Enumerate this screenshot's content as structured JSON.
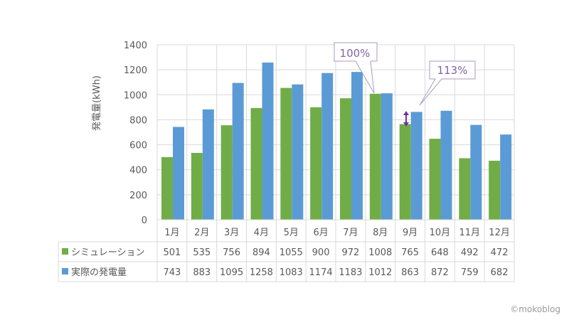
{
  "chart_data": {
    "type": "bar",
    "title": "",
    "ylabel": "発電量(kWh)",
    "xlabel": "",
    "ylim": [
      0,
      1400
    ],
    "yticks": [
      0,
      200,
      400,
      600,
      800,
      1000,
      1200,
      1400
    ],
    "grid": true,
    "categories": [
      "1月",
      "2月",
      "3月",
      "4月",
      "5月",
      "6月",
      "7月",
      "8月",
      "9月",
      "10月",
      "11月",
      "12月"
    ],
    "series": [
      {
        "name": "シミュレーション",
        "color": "#70ad47",
        "values": [
          501,
          535,
          756,
          894,
          1055,
          900,
          972,
          1008,
          765,
          648,
          492,
          472
        ]
      },
      {
        "name": "実際の発電量",
        "color": "#5b9bd5",
        "values": [
          743,
          883,
          1095,
          1258,
          1083,
          1174,
          1183,
          1012,
          863,
          872,
          759,
          682
        ]
      }
    ],
    "annotations": [
      {
        "text": "100%",
        "month": "8月",
        "color": "#8064a2"
      },
      {
        "text": "113%",
        "month": "9月",
        "color": "#8064a2"
      }
    ],
    "legend": "data-table"
  },
  "watermark": "©mokoblog"
}
